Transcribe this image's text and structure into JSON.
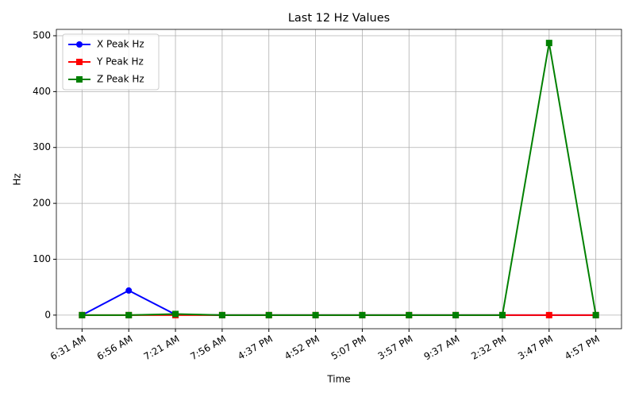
{
  "chart_data": {
    "type": "line",
    "title": "Last 12 Hz Values",
    "x_label": "Time",
    "y_label": "Hz",
    "categories": [
      "6:31 AM",
      "6:56 AM",
      "7:21 AM",
      "7:56 AM",
      "4:37 PM",
      "4:52 PM",
      "5:07 PM",
      "3:57 PM",
      "9:37 AM",
      "2:32 PM",
      "3:47 PM",
      "4:57 PM"
    ],
    "series": [
      {
        "name": "X Peak Hz",
        "color": "#0000ff",
        "marker": "circle",
        "values": [
          0,
          44,
          1,
          0,
          0,
          0,
          0,
          0,
          0,
          0,
          0,
          0
        ]
      },
      {
        "name": "Y Peak Hz",
        "color": "#ff0000",
        "marker": "square",
        "values": [
          0,
          0,
          0,
          0,
          0,
          0,
          0,
          0,
          0,
          0,
          0,
          0
        ]
      },
      {
        "name": "Z Peak Hz",
        "color": "#008000",
        "marker": "square",
        "values": [
          0,
          0,
          2,
          0,
          0,
          0,
          0,
          0,
          0,
          0,
          487,
          0
        ]
      }
    ],
    "ylim": [
      -24.35,
      511.35
    ],
    "yticks": [
      0,
      100,
      200,
      300,
      400,
      500
    ],
    "grid": true,
    "legend": "upper left"
  }
}
